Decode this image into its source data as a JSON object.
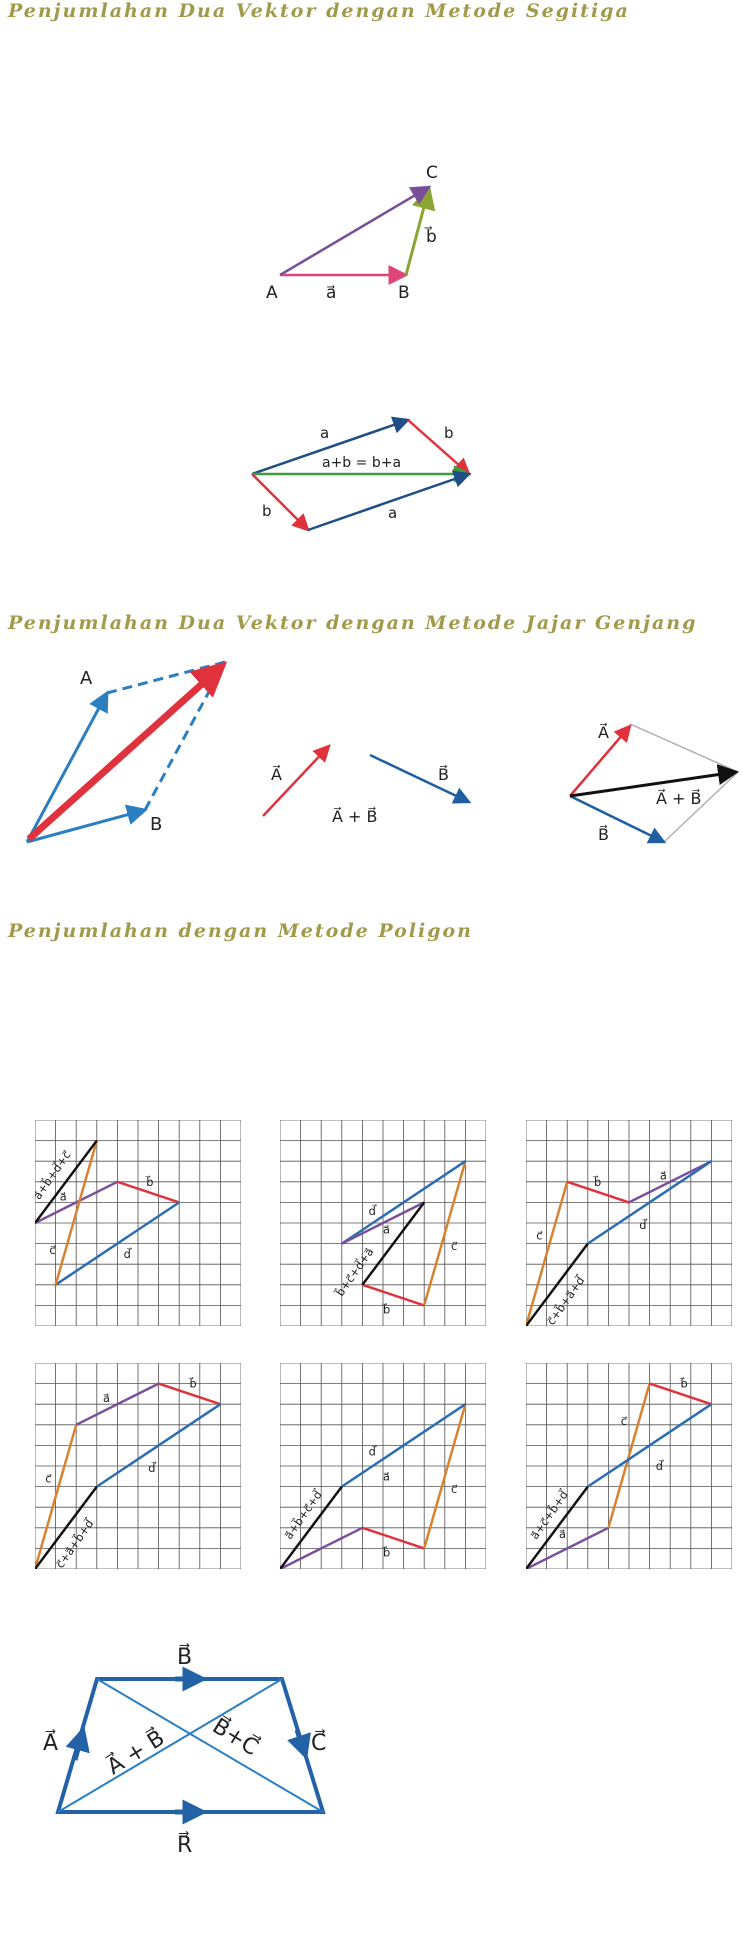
{
  "sections": {
    "triangle": {
      "title": "Penjumlahan Dua Vektor dengan Metode Segitiga"
    },
    "parallelogram": {
      "title": "Penjumlahan Dua Vektor dengan Metode Jajar Genjang"
    },
    "polygon": {
      "title": "Penjumlahan dengan Metode Poligon"
    }
  },
  "fig1": {
    "A": "A",
    "B": "B",
    "C": "C",
    "vec_a": "a⃗",
    "vec_b": "b⃗"
  },
  "fig2": {
    "top_a": "a",
    "top_b": "b",
    "eq": "a+b = b+a",
    "bot_b": "b",
    "bot_a": "a"
  },
  "fig3": {
    "A": "A",
    "B": "B"
  },
  "fig4": {
    "A": "A⃗",
    "B": "B⃗",
    "sum": "A⃗ + B⃗"
  },
  "fig5": {
    "A": "A⃗",
    "B": "B⃗",
    "sum": "A⃗ + B⃗"
  },
  "grids": {
    "g1": {
      "sum": "a⃗+b⃗+d⃗+c⃗",
      "a": "a⃗",
      "b": "b⃗",
      "c": "c⃗",
      "d": "d⃗",
      "a2": "a⃗"
    },
    "g2": {
      "sum": "b⃗+c⃗+d⃗+a⃗",
      "a": "a⃗",
      "b": "b⃗",
      "c": "c⃗",
      "d": "d⃗"
    },
    "g3": {
      "sum": "c⃗+b⃗+a⃗+d⃗",
      "a": "a⃗",
      "b": "b⃗",
      "c": "c⃗",
      "d": "d⃗"
    },
    "g4": {
      "sum": "c⃗+a⃗+b⃗+d⃗",
      "a": "a⃗",
      "b": "b⃗",
      "c": "c⃗",
      "d": "d⃗"
    },
    "g5": {
      "sum": "a⃗+b⃗+c⃗+d⃗",
      "a": "a⃗",
      "b": "b⃗",
      "c": "c⃗",
      "d": "d⃗"
    },
    "g6": {
      "sum": "a⃗+c⃗+b⃗+d⃗",
      "a": "a⃗",
      "b": "b⃗",
      "c": "c⃗",
      "d": "d⃗"
    }
  },
  "fig6": {
    "A": "A⃗",
    "B": "B⃗",
    "C": "C⃗",
    "R": "R⃗",
    "AB": "A⃗ + B⃗",
    "BC": "B⃗+C⃗"
  },
  "colors": {
    "heading": "#a09a4a",
    "red": "#e0323c",
    "blue": "#2a6db3",
    "purple": "#7a4f9a",
    "green": "#3e9c3e",
    "orange": "#d8812e",
    "olive": "#8aa534"
  }
}
